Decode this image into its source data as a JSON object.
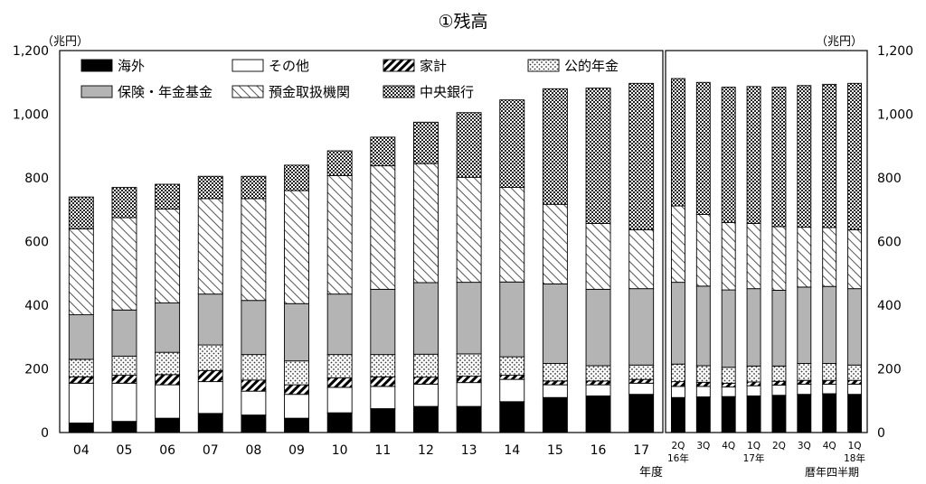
{
  "chart_data": {
    "type": "bar",
    "stacked": true,
    "title": "①残高",
    "unit_left": "（兆円）",
    "unit_right": "（兆円）",
    "ylim": [
      0,
      1200
    ],
    "yticks": [
      "0",
      "200",
      "400",
      "600",
      "800",
      "1,000",
      "1,200"
    ],
    "legend_placement": "top-inside",
    "grid": false,
    "annual": {
      "axis_label": "年度",
      "categories": [
        "04",
        "05",
        "06",
        "07",
        "08",
        "09",
        "10",
        "11",
        "12",
        "13",
        "14",
        "15",
        "16",
        "17"
      ]
    },
    "quarterly": {
      "axis_label": "暦年四半期",
      "categories": [
        {
          "q": "2Q",
          "year": "16年"
        },
        {
          "q": "3Q",
          "year": ""
        },
        {
          "q": "4Q",
          "year": ""
        },
        {
          "q": "1Q",
          "year": "17年"
        },
        {
          "q": "2Q",
          "year": ""
        },
        {
          "q": "3Q",
          "year": ""
        },
        {
          "q": "4Q",
          "year": ""
        },
        {
          "q": "1Q",
          "year": "18年"
        }
      ]
    },
    "series": [
      {
        "name": "海外",
        "pattern": "solid-black",
        "annual": [
          30,
          35,
          45,
          60,
          55,
          45,
          62,
          75,
          82,
          82,
          97,
          110,
          115,
          120
        ],
        "quarterly": [
          110,
          112,
          113,
          115,
          117,
          120,
          122,
          120
        ]
      },
      {
        "name": "その他",
        "pattern": "white",
        "annual": [
          125,
          120,
          105,
          100,
          75,
          75,
          80,
          70,
          70,
          75,
          70,
          40,
          35,
          35
        ],
        "quarterly": [
          35,
          33,
          30,
          32,
          32,
          32,
          30,
          32
        ]
      },
      {
        "name": "家計",
        "pattern": "diagonal-thick",
        "annual": [
          20,
          25,
          32,
          35,
          35,
          30,
          30,
          30,
          22,
          20,
          13,
          12,
          12,
          12
        ],
        "quarterly": [
          15,
          13,
          12,
          12,
          12,
          12,
          12,
          12
        ]
      },
      {
        "name": "公的年金",
        "pattern": "dots",
        "annual": [
          55,
          60,
          70,
          80,
          80,
          75,
          73,
          70,
          72,
          70,
          58,
          55,
          48,
          45
        ],
        "quarterly": [
          55,
          52,
          50,
          50,
          48,
          53,
          53,
          48
        ]
      },
      {
        "name": "保険・年金基金",
        "pattern": "gray",
        "annual": [
          140,
          145,
          155,
          160,
          170,
          180,
          190,
          205,
          225,
          225,
          235,
          250,
          240,
          240
        ],
        "quarterly": [
          257,
          250,
          243,
          243,
          238,
          240,
          242,
          240
        ]
      },
      {
        "name": "預金取扱機関",
        "pattern": "diagonal-thin",
        "annual": [
          270,
          290,
          295,
          300,
          320,
          355,
          372,
          388,
          374,
          330,
          297,
          250,
          207,
          185
        ],
        "quarterly": [
          240,
          225,
          212,
          205,
          200,
          188,
          185,
          185
        ]
      },
      {
        "name": "中央銀行",
        "pattern": "checker",
        "annual": [
          100,
          95,
          78,
          70,
          70,
          80,
          78,
          90,
          130,
          203,
          275,
          363,
          425,
          460
        ],
        "quarterly": [
          400,
          415,
          425,
          430,
          438,
          445,
          450,
          460
        ]
      }
    ]
  }
}
